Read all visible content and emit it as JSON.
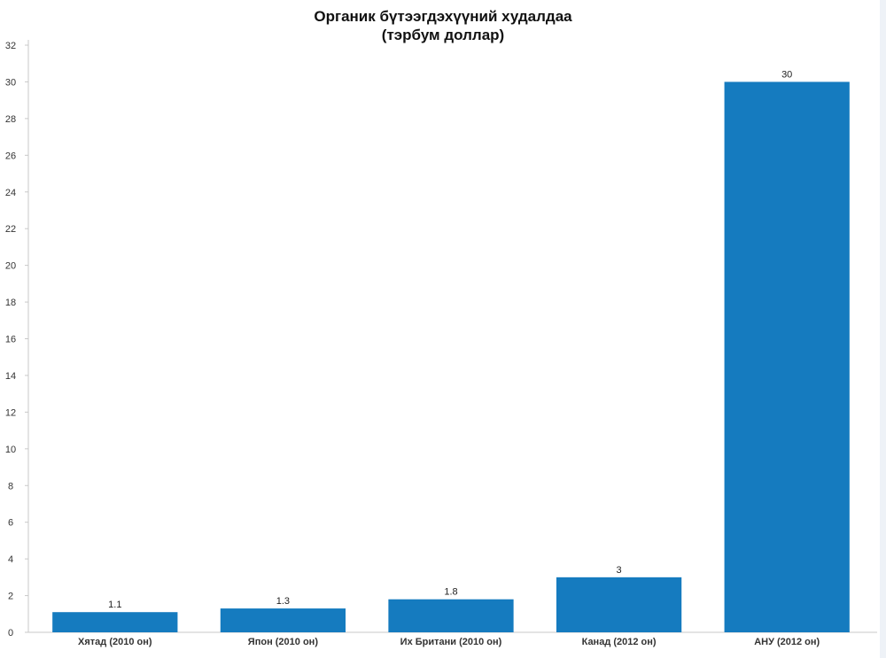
{
  "chart_data": {
    "type": "bar",
    "title": "Органик бүтээгдэхүүний худалдаа",
    "subtitle": "(тэрбум доллар)",
    "categories": [
      "Хятад (2010 он)",
      "Япон (2010 он)",
      "Их Британи (2010 он)",
      "Канад (2012 он)",
      "АНУ (2012 он)"
    ],
    "values": [
      1.1,
      1.3,
      1.8,
      3,
      30
    ],
    "value_labels": [
      "1.1",
      "1.3",
      "1.8",
      "3",
      "30"
    ],
    "ylim": [
      0,
      32
    ],
    "yticks": [
      0,
      2,
      4,
      6,
      8,
      10,
      12,
      14,
      16,
      18,
      20,
      22,
      24,
      26,
      28,
      30,
      32
    ],
    "xlabel": "",
    "ylabel": "",
    "grid": false,
    "legend": "none",
    "bar_color": "#157bbf"
  }
}
